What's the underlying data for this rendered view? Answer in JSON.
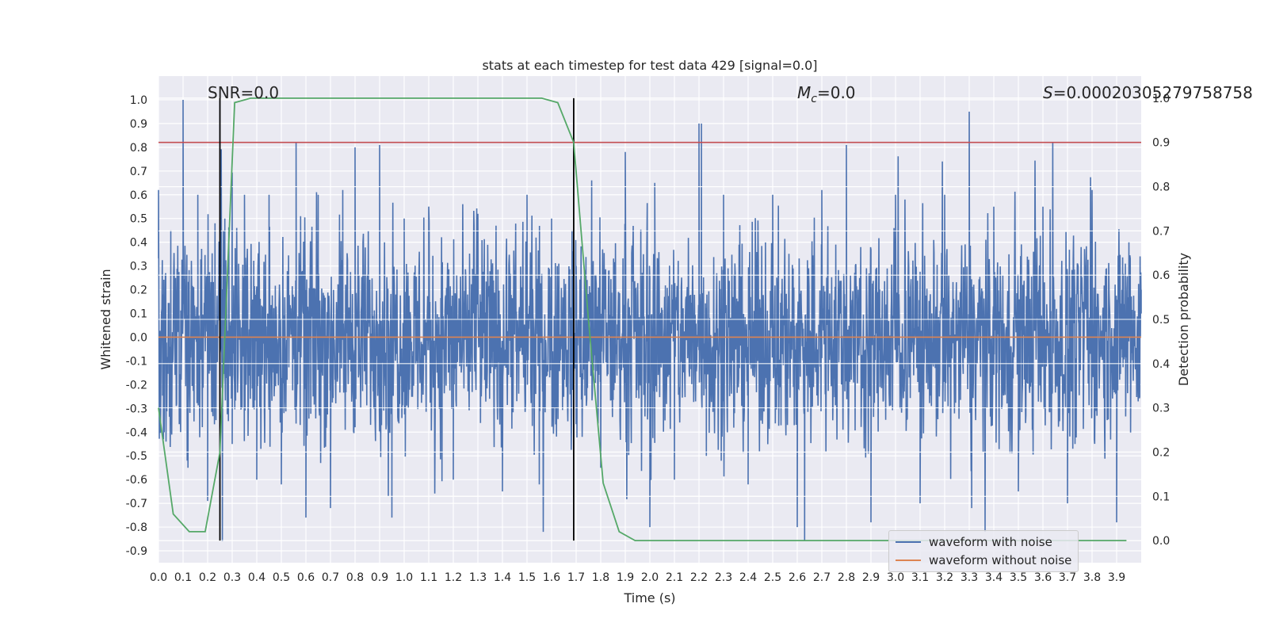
{
  "chart_data": {
    "type": "line",
    "title": "stats at each timestep for test data 429 [signal=0.0]",
    "xlabel": "Time (s)",
    "ylabel": "Whitened strain",
    "y2label": "Detection probability",
    "xlim": [
      0.0,
      4.0
    ],
    "ylim": [
      -0.95,
      1.1
    ],
    "y2lim": [
      -0.05,
      1.05
    ],
    "x_ticks": [
      "0.0",
      "0.1",
      "0.2",
      "0.3",
      "0.4",
      "0.5",
      "0.6",
      "0.7",
      "0.8",
      "0.9",
      "1.0",
      "1.1",
      "1.2",
      "1.3",
      "1.4",
      "1.5",
      "1.6",
      "1.7",
      "1.8",
      "1.9",
      "2.0",
      "2.1",
      "2.2",
      "2.3",
      "2.4",
      "2.5",
      "2.6",
      "2.7",
      "2.8",
      "2.9",
      "3.0",
      "3.1",
      "3.2",
      "3.3",
      "3.4",
      "3.5",
      "3.6",
      "3.7",
      "3.8",
      "3.9"
    ],
    "y_ticks": [
      "1.0",
      "0.9",
      "0.8",
      "0.7",
      "0.6",
      "0.5",
      "0.4",
      "0.3",
      "0.2",
      "0.1",
      "0.0",
      "-0.1",
      "-0.2",
      "-0.3",
      "-0.4",
      "-0.5",
      "-0.6",
      "-0.7",
      "-0.8",
      "-0.9"
    ],
    "y2_ticks": [
      "1.0",
      "0.9",
      "0.8",
      "0.7",
      "0.6",
      "0.5",
      "0.4",
      "0.3",
      "0.2",
      "0.1",
      "0.0"
    ],
    "grid": true,
    "legend_position": "bottom-right",
    "annotations": {
      "snr": "SNR=0.0",
      "mc_symbol": "M",
      "mc_sub": "c",
      "mc_value": "=0.0",
      "s_symbol": "S",
      "s_value": "=0.00020305279758758"
    },
    "series": [
      {
        "name": "waveform with noise",
        "color": "#4c72b0",
        "axis": "left",
        "note": "dense noise trace spanning 0.0–4.0 s, mostly within ±0.45 with spikes",
        "x": [
          0.0,
          0.02,
          0.05,
          0.09,
          0.1,
          0.12,
          0.16,
          0.2,
          0.23,
          0.26,
          0.27,
          0.3,
          0.35,
          0.4,
          0.45,
          0.5,
          0.56,
          0.6,
          0.65,
          0.7,
          0.75,
          0.8,
          0.9,
          0.95,
          1.0,
          1.1,
          1.2,
          1.3,
          1.4,
          1.5,
          1.55,
          1.6,
          1.7,
          1.8,
          1.9,
          2.0,
          2.02,
          2.1,
          2.2,
          2.21,
          2.23,
          2.3,
          2.4,
          2.5,
          2.6,
          2.63,
          2.7,
          2.8,
          2.9,
          3.0,
          3.1,
          3.2,
          3.3,
          3.31,
          3.4,
          3.5,
          3.6,
          3.7,
          3.8,
          3.9,
          3.95,
          4.0
        ],
        "y": [
          0.62,
          -0.43,
          0.45,
          -0.4,
          1.0,
          -0.55,
          0.6,
          -0.69,
          0.48,
          -0.86,
          0.5,
          -0.45,
          0.6,
          -0.6,
          0.6,
          -0.62,
          0.82,
          -0.76,
          0.6,
          -0.72,
          0.62,
          0.8,
          0.81,
          -0.76,
          0.5,
          0.55,
          -0.6,
          0.52,
          -0.65,
          0.6,
          -0.62,
          0.5,
          0.3,
          -0.55,
          0.78,
          -0.8,
          0.65,
          -0.6,
          0.9,
          0.9,
          -0.5,
          0.6,
          -0.62,
          0.6,
          -0.8,
          -0.86,
          0.62,
          0.81,
          -0.78,
          0.6,
          -0.7,
          0.6,
          0.95,
          -0.72,
          0.55,
          -0.65,
          0.55,
          -0.7,
          0.62,
          -0.78,
          0.4,
          0.2
        ]
      },
      {
        "name": "waveform without noise",
        "color": "#dd8452",
        "axis": "left",
        "x": [
          0.0,
          4.0
        ],
        "y": [
          0.0,
          0.0
        ]
      },
      {
        "name": "Detection probability",
        "color": "#55a868",
        "axis": "right",
        "x": [
          0.0,
          0.06,
          0.125,
          0.19,
          0.25,
          0.31,
          0.375,
          0.44,
          0.5,
          0.75,
          1.0,
          1.25,
          1.5,
          1.56,
          1.625,
          1.69,
          1.75,
          1.81,
          1.875,
          1.94,
          2.0,
          2.5,
          3.0,
          3.5,
          3.94
        ],
        "y": [
          0.3,
          0.06,
          0.02,
          0.02,
          0.2,
          0.99,
          1.0,
          1.0,
          1.0,
          1.0,
          1.0,
          1.0,
          1.0,
          1.0,
          0.99,
          0.9,
          0.5,
          0.13,
          0.02,
          0.0,
          0.0,
          0.0,
          0.0,
          0.0,
          0.0
        ]
      }
    ],
    "threshold_line": {
      "color": "#c44e52",
      "axis": "right",
      "y": 0.9
    },
    "vertical_lines": {
      "color": "#000000",
      "x": [
        0.25,
        1.69
      ]
    }
  }
}
